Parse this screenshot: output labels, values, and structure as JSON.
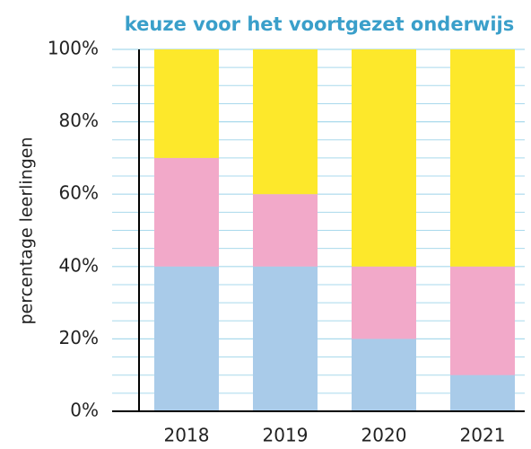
{
  "chart_data": {
    "type": "stacked_bar",
    "title": "keuze voor het voortgezet onderwijs",
    "y_label": "percentage leerlingen",
    "categories": [
      "2018",
      "2019",
      "2020",
      "2021"
    ],
    "series": [
      {
        "color": "#a9cbe9",
        "values": [
          40,
          40,
          20,
          10
        ]
      },
      {
        "color": "#f2a9c9",
        "values": [
          30,
          20,
          20,
          30
        ]
      },
      {
        "color": "#fde82b",
        "values": [
          30,
          40,
          60,
          60
        ]
      }
    ],
    "ylim": [
      0,
      100
    ],
    "yticks": [
      {
        "value": 0,
        "label": "0%"
      },
      {
        "value": 20,
        "label": "20%"
      },
      {
        "value": 40,
        "label": "40%"
      },
      {
        "value": 60,
        "label": "60%"
      },
      {
        "value": 80,
        "label": "80%"
      },
      {
        "value": 100,
        "label": "100%"
      }
    ],
    "minor_yticks": [
      5,
      10,
      15,
      25,
      30,
      35,
      45,
      50,
      55,
      65,
      70,
      75,
      85,
      90,
      95
    ],
    "grid": true,
    "grid_color": "#a9d9ec"
  }
}
